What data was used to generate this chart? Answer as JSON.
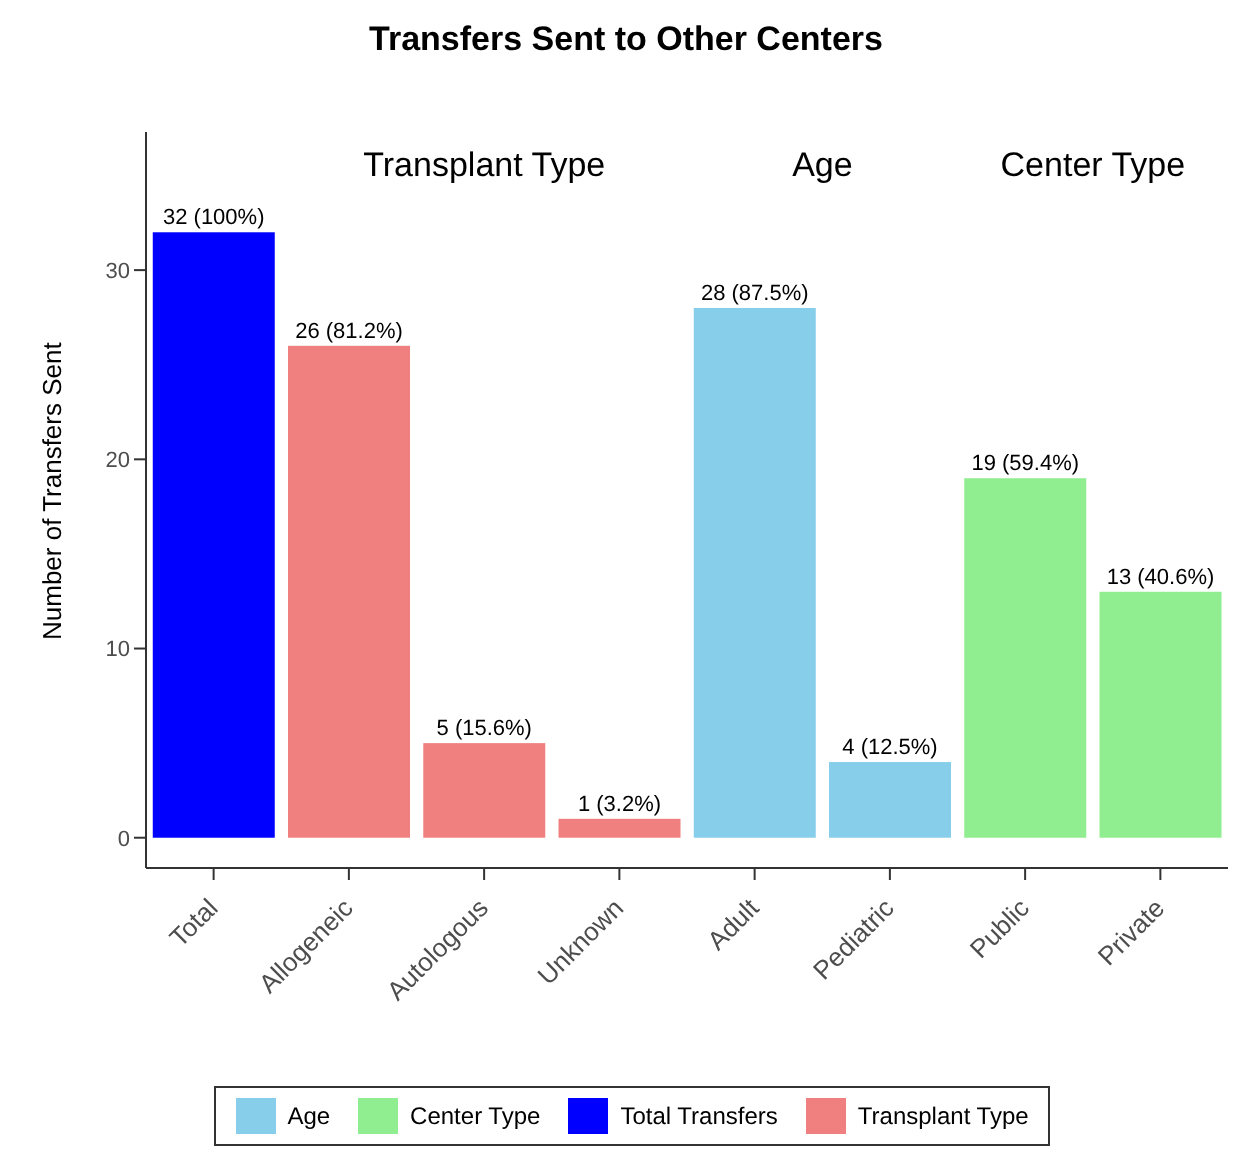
{
  "chart_data": {
    "type": "bar",
    "title": "Transfers Sent to Other Centers",
    "ylabel": "Number of Transfers Sent",
    "categories": [
      "Total",
      "Allogeneic",
      "Autologous",
      "Unknown",
      "Adult",
      "Pediatric",
      "Public",
      "Private"
    ],
    "stacked": true,
    "series": [
      {
        "name": "Age",
        "color": "#87ceeb",
        "values": [
          null,
          null,
          null,
          null,
          28,
          4,
          null,
          null
        ],
        "value_labels": [
          null,
          null,
          null,
          null,
          "28 (87.5%)",
          "4 (12.5%)",
          null,
          null
        ]
      },
      {
        "name": "Center Type",
        "color": "#90ee90",
        "values": [
          null,
          null,
          null,
          null,
          null,
          null,
          19,
          13
        ],
        "value_labels": [
          null,
          null,
          null,
          null,
          null,
          null,
          "19 (59.4%)",
          "13 (40.6%)"
        ]
      },
      {
        "name": "Total Transfers",
        "color": "#0000ff",
        "values": [
          32,
          null,
          null,
          null,
          null,
          null,
          null,
          null
        ],
        "value_labels": [
          "32 (100%)",
          null,
          null,
          null,
          null,
          null,
          null,
          null
        ]
      },
      {
        "name": "Transplant Type",
        "color": "#f08080",
        "values": [
          null,
          26,
          5,
          1,
          null,
          null,
          null,
          null
        ],
        "value_labels": [
          null,
          "26 (81.2%)",
          "5 (15.6%)",
          "1 (3.2%)",
          null,
          null,
          null,
          null
        ]
      }
    ],
    "annotations": [
      "Transplant Type",
      "Age",
      "Center Type"
    ],
    "ylim": [
      -1.6,
      37.3
    ],
    "yticks": [
      0,
      10,
      20,
      30
    ],
    "grid": false,
    "legend": "bottom"
  }
}
